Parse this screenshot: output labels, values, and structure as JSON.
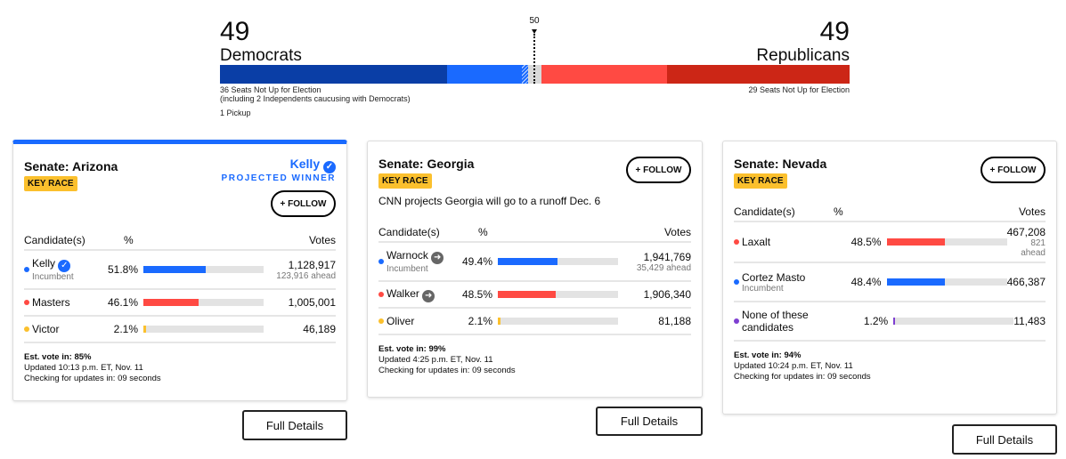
{
  "balance": {
    "dem": {
      "count": "49",
      "label": "Democrats",
      "note": "36 Seats Not Up for Election",
      "note2": "(including 2 Independents caucusing with Democrats)",
      "pickup": "1 Pickup"
    },
    "rep": {
      "count": "49",
      "label": "Republicans",
      "note": "29 Seats Not Up for Election"
    },
    "majority": "50",
    "seats": {
      "dem_not_up": 36,
      "dem_won": 12,
      "dem_pickup": 1,
      "undecided": 2,
      "rep_won": 20,
      "rep_not_up": 29
    },
    "colors": {
      "dem_not_up": "#0a3ea6",
      "dem_won": "#1a6aff",
      "undecided": "#d9d9d9",
      "rep_won": "#ff4a43",
      "rep_not_up": "#cc2616"
    }
  },
  "columns": {
    "candidate": "Candidate(s)",
    "pct": "%",
    "votes": "Votes"
  },
  "follow": "+ FOLLOW",
  "key_race": "KEY RACE",
  "full_details": "Full Details",
  "cards": [
    {
      "title": "Senate: Arizona",
      "winner": "Kelly",
      "winner_label": "PROJECTED WINNER",
      "est": "Est. vote in: 85%",
      "updated": "Updated 10:13 p.m. ET, Nov. 11",
      "checking": "Checking for updates in: 09 seconds",
      "candidates": [
        {
          "name": "Kelly",
          "badge": "check-icon",
          "sub": "Incumbent",
          "pct": "51.8%",
          "pct_value": 51.8,
          "votes": "1,128,917",
          "ahead": "123,916 ahead",
          "color": "#1a6aff"
        },
        {
          "name": "Masters",
          "pct": "46.1%",
          "pct_value": 46.1,
          "votes": "1,005,001",
          "color": "#ff4a43"
        },
        {
          "name": "Victor",
          "pct": "2.1%",
          "pct_value": 2.1,
          "votes": "46,189",
          "color": "#fbc02d"
        }
      ]
    },
    {
      "title": "Senate: Georgia",
      "projection": "CNN projects Georgia will go to a runoff Dec. 6",
      "est": "Est. vote in: 99%",
      "updated": "Updated 4:25 p.m. ET, Nov. 11",
      "checking": "Checking for updates in: 09 seconds",
      "candidates": [
        {
          "name": "Warnock",
          "badge": "arrow-right-icon",
          "sub": "Incumbent",
          "pct": "49.4%",
          "pct_value": 49.4,
          "votes": "1,941,769",
          "ahead": "35,429 ahead",
          "color": "#1a6aff"
        },
        {
          "name": "Walker",
          "badge": "arrow-right-icon",
          "pct": "48.5%",
          "pct_value": 48.5,
          "votes": "1,906,340",
          "color": "#ff4a43"
        },
        {
          "name": "Oliver",
          "pct": "2.1%",
          "pct_value": 2.1,
          "votes": "81,188",
          "color": "#fbc02d"
        }
      ]
    },
    {
      "title": "Senate: Nevada",
      "est": "Est. vote in: 94%",
      "updated": "Updated 10:24 p.m. ET, Nov. 11",
      "checking": "Checking for updates in: 09 seconds",
      "candidates": [
        {
          "name": "Laxalt",
          "pct": "48.5%",
          "pct_value": 48.5,
          "votes": "467,208",
          "ahead": "821 ahead",
          "color": "#ff4a43"
        },
        {
          "name": "Cortez Masto",
          "sub": "Incumbent",
          "pct": "48.4%",
          "pct_value": 48.4,
          "votes": "466,387",
          "color": "#1a6aff"
        },
        {
          "name": "None of these candidates",
          "pct": "1.2%",
          "pct_value": 1.2,
          "votes": "11,483",
          "color": "#7e3fd1"
        }
      ]
    }
  ]
}
